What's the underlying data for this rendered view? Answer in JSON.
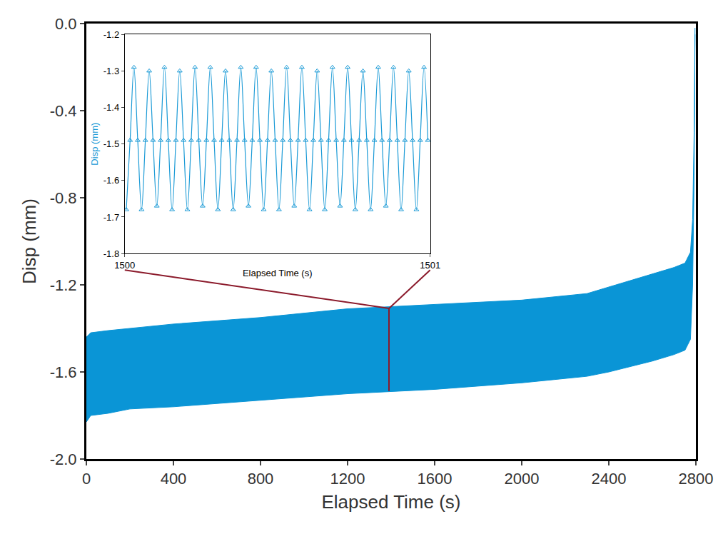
{
  "chart_data": [
    {
      "type": "band",
      "x_label": "Elapsed Time (s)",
      "y_label": "Disp (mm)",
      "x": [
        0,
        20,
        100,
        200,
        400,
        800,
        1200,
        1600,
        2000,
        2300,
        2400,
        2600,
        2700,
        2750,
        2775,
        2785,
        2792,
        2796
      ],
      "series": [
        {
          "color": "#0a95d6",
          "values": [
            -1.44,
            -1.42,
            -1.41,
            -1.4,
            -1.38,
            -1.35,
            -1.31,
            -1.29,
            -1.27,
            -1.24,
            -1.21,
            -1.15,
            -1.12,
            -1.1,
            -1.05,
            -0.9,
            -0.5,
            -0.02
          ]
        },
        {
          "color": "#0a95d6",
          "values": [
            -1.83,
            -1.8,
            -1.79,
            -1.77,
            -1.76,
            -1.73,
            -1.7,
            -1.68,
            -1.65,
            -1.62,
            -1.6,
            -1.55,
            -1.52,
            -1.5,
            -1.45,
            -1.2,
            -0.7,
            -0.05
          ]
        }
      ],
      "xlim": [
        0,
        2800
      ],
      "xticks": [
        0,
        400,
        800,
        1200,
        1600,
        2000,
        2400,
        2800
      ],
      "ylim": [
        -2.0,
        0.0
      ],
      "yticks": [
        {
          "value": -2.0,
          "label": "-2.0"
        },
        -1.6,
        -1.2,
        -0.8,
        -0.4,
        {
          "value": 0.0,
          "label": "0.0"
        }
      ],
      "grid": false
    },
    {
      "type": "line",
      "x_label": "Elapsed Time (s)",
      "y_label": "Disp (mm)",
      "x": [
        1500.005,
        1500.0175,
        1500.03,
        1500.0425,
        1500.055,
        1500.0675,
        1500.08,
        1500.0925,
        1500.105,
        1500.1175,
        1500.13,
        1500.1425,
        1500.155,
        1500.1675,
        1500.18,
        1500.1925,
        1500.205,
        1500.2175,
        1500.23,
        1500.2425,
        1500.255,
        1500.2675,
        1500.28,
        1500.2925,
        1500.305,
        1500.3175,
        1500.33,
        1500.3425,
        1500.355,
        1500.3675,
        1500.38,
        1500.3925,
        1500.405,
        1500.4175,
        1500.43,
        1500.4425,
        1500.455,
        1500.4675,
        1500.48,
        1500.4925,
        1500.505,
        1500.5175,
        1500.53,
        1500.5425,
        1500.555,
        1500.5675,
        1500.58,
        1500.5925,
        1500.605,
        1500.6175,
        1500.63,
        1500.6425,
        1500.655,
        1500.6675,
        1500.68,
        1500.6925,
        1500.705,
        1500.7175,
        1500.73,
        1500.7425,
        1500.755,
        1500.7675,
        1500.78,
        1500.7925,
        1500.805,
        1500.8175,
        1500.83,
        1500.8425,
        1500.855,
        1500.8675,
        1500.88,
        1500.8925,
        1500.905,
        1500.9175,
        1500.93,
        1500.9425,
        1500.955,
        1500.9675,
        1500.98,
        1500.9925
      ],
      "values": [
        -1.68,
        -1.49,
        -1.29,
        -1.49,
        -1.68,
        -1.49,
        -1.3,
        -1.49,
        -1.67,
        -1.49,
        -1.29,
        -1.49,
        -1.68,
        -1.49,
        -1.3,
        -1.49,
        -1.68,
        -1.49,
        -1.29,
        -1.49,
        -1.67,
        -1.49,
        -1.29,
        -1.49,
        -1.68,
        -1.49,
        -1.3,
        -1.49,
        -1.68,
        -1.49,
        -1.29,
        -1.49,
        -1.67,
        -1.49,
        -1.29,
        -1.49,
        -1.68,
        -1.49,
        -1.3,
        -1.49,
        -1.68,
        -1.49,
        -1.29,
        -1.49,
        -1.67,
        -1.49,
        -1.29,
        -1.49,
        -1.68,
        -1.49,
        -1.3,
        -1.49,
        -1.68,
        -1.49,
        -1.29,
        -1.49,
        -1.67,
        -1.49,
        -1.29,
        -1.49,
        -1.68,
        -1.49,
        -1.3,
        -1.49,
        -1.68,
        -1.49,
        -1.29,
        -1.49,
        -1.67,
        -1.49,
        -1.29,
        -1.49,
        -1.68,
        -1.49,
        -1.3,
        -1.49,
        -1.68,
        -1.49,
        -1.29,
        -1.49
      ],
      "color": "#1a9ad6",
      "marker": "triangle-up-open",
      "xlim": [
        1500,
        1501
      ],
      "xticks": [
        1500,
        1501
      ],
      "ylim": [
        -1.8,
        -1.2
      ],
      "yticks": [
        -1.8,
        -1.7,
        -1.6,
        -1.5,
        -1.4,
        -1.3,
        -1.2
      ],
      "grid": false
    }
  ]
}
